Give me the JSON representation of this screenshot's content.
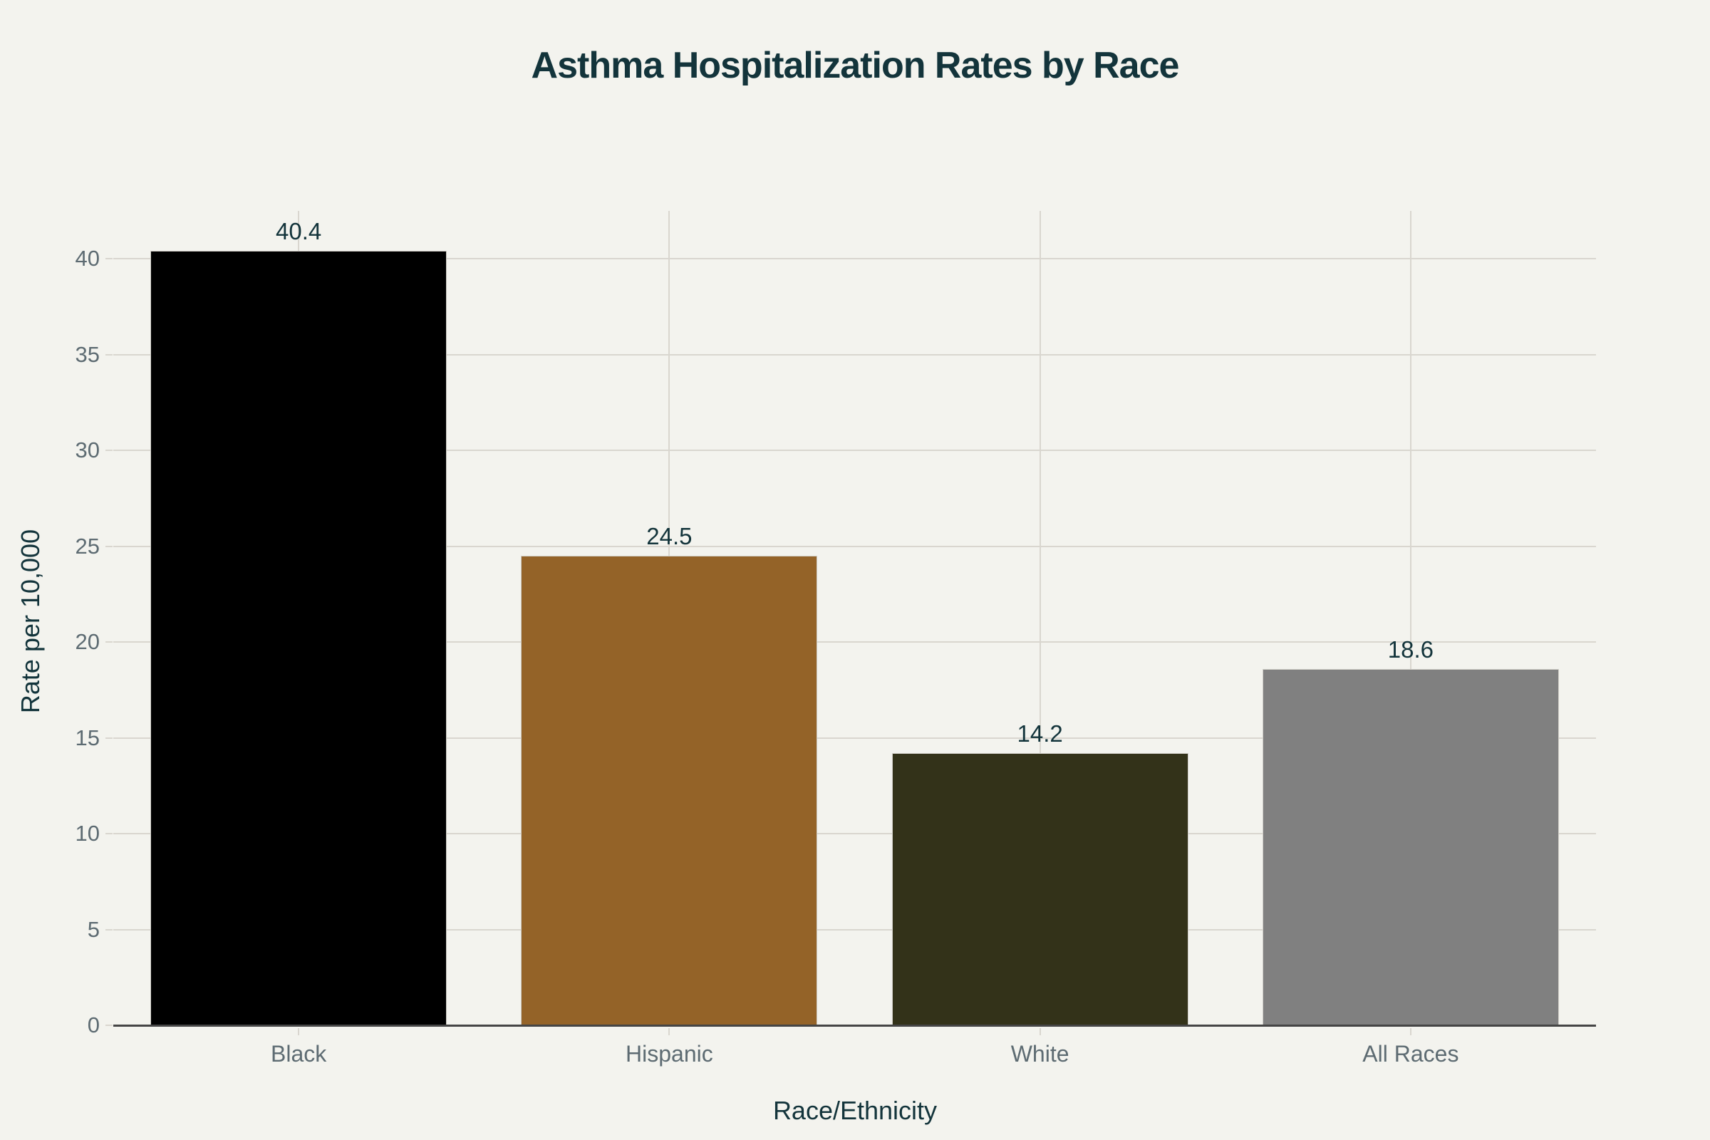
{
  "chart_data": {
    "type": "bar",
    "title": "Asthma Hospitalization Rates by Race",
    "xlabel": "Race/Ethnicity",
    "ylabel": "Rate per 10,000",
    "categories": [
      "Black",
      "Hispanic",
      "White",
      "All Races"
    ],
    "values": [
      40.4,
      24.5,
      14.2,
      18.6
    ],
    "value_labels": [
      "40.4",
      "24.5",
      "14.2",
      "18.6"
    ],
    "colors": [
      "#000000",
      "#946328",
      "#333219",
      "#808080"
    ],
    "ylim": [
      0,
      42.5
    ],
    "yticks": [
      0,
      5,
      10,
      15,
      20,
      25,
      30,
      35,
      40
    ],
    "grid": true,
    "legend": "none"
  },
  "colors": {
    "background": "#f3f3ee",
    "title": "#13343b",
    "tick_label": "#5d6b72",
    "grid": "#d9d6cf",
    "axis_line": "#454545"
  }
}
